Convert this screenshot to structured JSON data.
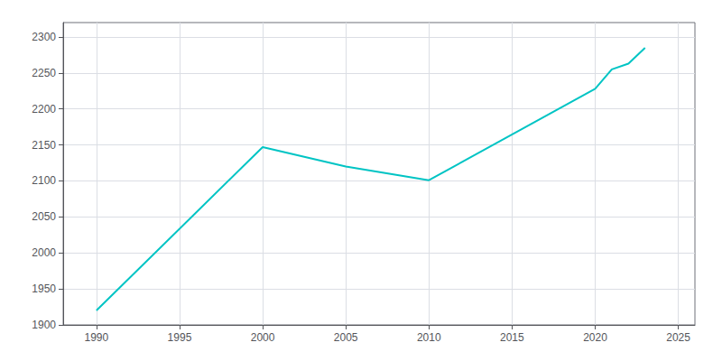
{
  "chart_data": {
    "type": "line",
    "x": [
      1990,
      2000,
      2005,
      2010,
      2020,
      2021,
      2022,
      2023
    ],
    "values": [
      1920,
      2147,
      2120,
      2101,
      2228,
      2255,
      2263,
      2285
    ],
    "color": "#00C4C4",
    "xlim": [
      1988,
      2026
    ],
    "ylim": [
      1900,
      2320
    ],
    "xticks": [
      1990,
      1995,
      2000,
      2005,
      2010,
      2015,
      2020,
      2025
    ],
    "yticks": [
      1900,
      1950,
      2000,
      2050,
      2100,
      2150,
      2200,
      2250,
      2300
    ],
    "grid": true
  }
}
